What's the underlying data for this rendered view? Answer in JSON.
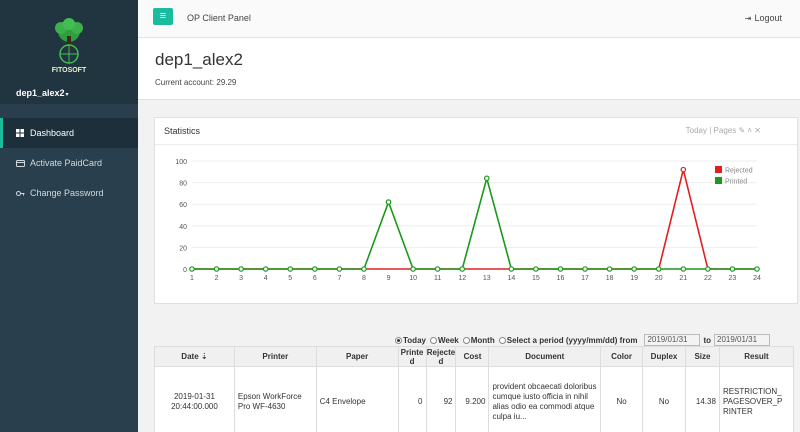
{
  "app": {
    "panel_title": "OP Client Panel",
    "logout_label": "Logout",
    "logo_text": "FITOSOFT"
  },
  "user": {
    "name": "dep1_alex2",
    "caret": "▾"
  },
  "sidebar": {
    "items": [
      {
        "label": "Dashboard",
        "icon": "dashboard-icon",
        "active": true
      },
      {
        "label": "Activate PaidCard",
        "icon": "card-icon",
        "active": false
      },
      {
        "label": "Change Password",
        "icon": "key-icon",
        "active": false
      }
    ]
  },
  "header": {
    "title": "dep1_alex2",
    "account": "Current account: 29.29"
  },
  "stats": {
    "title": "Statistics",
    "tools_label": "Today | Pages"
  },
  "colors": {
    "accent": "#1abc9c",
    "rejected": "#e02020",
    "printed": "#1a9a1a",
    "sidebar": "#2a3f4d"
  },
  "chart_data": {
    "type": "line",
    "x": [
      1,
      2,
      3,
      4,
      5,
      6,
      7,
      8,
      9,
      10,
      11,
      12,
      13,
      14,
      15,
      16,
      17,
      18,
      19,
      20,
      21,
      22,
      23,
      24
    ],
    "ylim": [
      0,
      100
    ],
    "yticks": [
      0,
      20,
      40,
      60,
      80,
      100
    ],
    "series": [
      {
        "name": "Rejected",
        "color": "#e02020",
        "values": [
          0,
          0,
          0,
          0,
          0,
          0,
          0,
          0,
          0,
          0,
          0,
          0,
          0,
          0,
          0,
          0,
          0,
          0,
          0,
          0,
          92,
          0,
          0,
          0
        ]
      },
      {
        "name": "Printed",
        "color": "#1a9a1a",
        "values": [
          0,
          0,
          0,
          0,
          0,
          0,
          0,
          0,
          62,
          0,
          0,
          0,
          84,
          0,
          0,
          0,
          0,
          0,
          0,
          0,
          0,
          0,
          0,
          0
        ]
      }
    ],
    "legend": "top-right"
  },
  "filter": {
    "options": [
      "Today",
      "Week",
      "Month",
      "Select a period (yyyy/mm/dd) from"
    ],
    "selected": 0,
    "from_value": "2019/01/31",
    "to_label": "to",
    "to_value": "2019/01/31"
  },
  "table": {
    "columns": [
      "Date ⇣",
      "Printer",
      "Paper",
      "Printe d",
      "Rejecte d",
      "Cost",
      "Document",
      "Color",
      "Duplex",
      "Size",
      "Result"
    ],
    "rows": [
      {
        "date": "2019-01-31 20:44:00.000",
        "printer": "Epson WorkForce Pro WF-4630",
        "paper": "C4 Envelope",
        "printed": "0",
        "rejected": "92",
        "cost": "9.200",
        "document": "provident obcaecati doloribus cumque iusto officia in nihil alias odio ea commodi atque culpa iu...",
        "color": "No",
        "duplex": "No",
        "size": "14.38",
        "result": "RESTRICTION_ PAGESOVER_P RINTER"
      }
    ]
  }
}
